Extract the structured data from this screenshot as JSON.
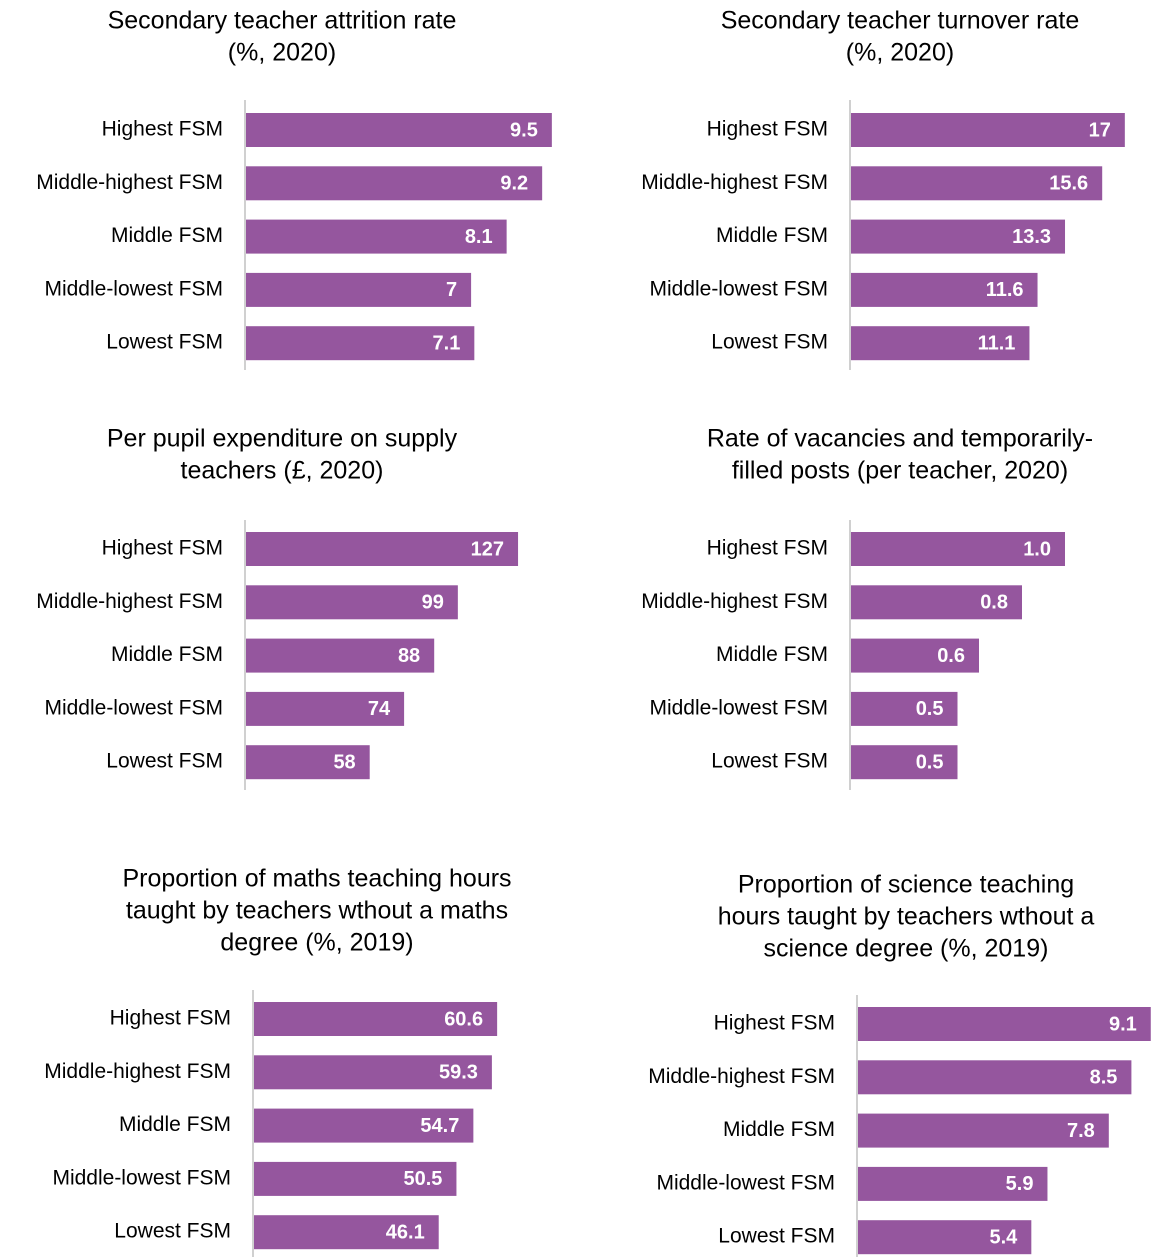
{
  "chart_data": [
    {
      "type": "hbar",
      "title": [
        "Secondary teacher attrition rate",
        "(%, 2020)"
      ],
      "color": "#95569e",
      "categories": [
        "Highest FSM",
        "Middle-highest FSM",
        "Middle FSM",
        "Middle-lowest FSM",
        "Lowest FSM"
      ],
      "values": [
        9.5,
        9.2,
        8.1,
        7,
        7.1
      ],
      "xlim": [
        0,
        10
      ]
    },
    {
      "type": "hbar",
      "title": [
        "Secondary teacher turnover rate",
        "(%, 2020)"
      ],
      "color": "#95569e",
      "categories": [
        "Highest FSM",
        "Middle-highest FSM",
        "Middle FSM",
        "Middle-lowest FSM",
        "Lowest FSM"
      ],
      "values": [
        17,
        15.6,
        13.3,
        11.6,
        11.1
      ],
      "xlim": [
        0,
        18
      ]
    },
    {
      "type": "hbar",
      "title": [
        "Per pupil expenditure on supply",
        "teachers (£, 2020)"
      ],
      "color": "#95569e",
      "categories": [
        "Highest FSM",
        "Middle-highest FSM",
        "Middle FSM",
        "Middle-lowest FSM",
        "Lowest FSM"
      ],
      "values": [
        127,
        99,
        88,
        74,
        58
      ],
      "xlim": [
        0,
        140
      ]
    },
    {
      "type": "hbar",
      "title": [
        "Rate of vacancies and temporarily-",
        "filled posts (per teacher, 2020)"
      ],
      "color": "#95569e",
      "categories": [
        "Highest FSM",
        "Middle-highest FSM",
        "Middle FSM",
        "Middle-lowest FSM",
        "Lowest FSM"
      ],
      "values": [
        1.0,
        0.8,
        0.6,
        0.5,
        0.5
      ],
      "value_labels": [
        "1.0",
        "0.8",
        "0.6",
        "0.5",
        "0.5"
      ],
      "xlim": [
        0,
        1.4
      ]
    },
    {
      "type": "hbar",
      "title": [
        "Proportion of maths teaching hours",
        "taught by teachers wthout a maths",
        "degree (%, 2019)"
      ],
      "color": "#95569e",
      "categories": [
        "Highest FSM",
        "Middle-highest FSM",
        "Middle FSM",
        "Middle-lowest FSM",
        "Lowest FSM"
      ],
      "values": [
        60.6,
        59.3,
        54.7,
        50.5,
        46.1
      ],
      "xlim": [
        0,
        70
      ]
    },
    {
      "type": "hbar",
      "title": [
        "Proportion of science teaching",
        "hours taught by teachers wthout a",
        "science degree (%, 2019)"
      ],
      "color": "#95569e",
      "categories": [
        "Highest FSM",
        "Middle-highest FSM",
        "Middle FSM",
        "Middle-lowest FSM",
        "Lowest FSM"
      ],
      "values": [
        9.1,
        8.5,
        7.8,
        5.9,
        5.4
      ],
      "xlim": [
        0,
        9.2
      ]
    }
  ]
}
